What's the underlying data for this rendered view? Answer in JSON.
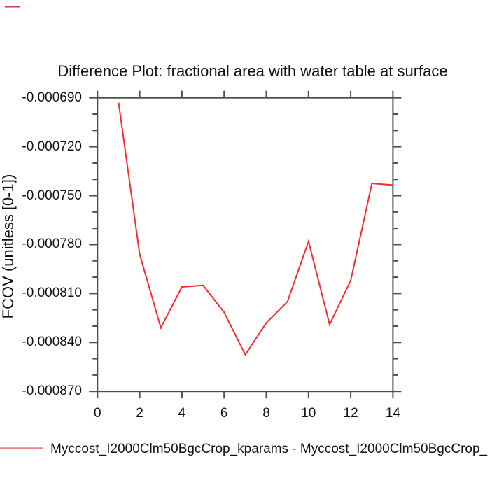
{
  "title": "Difference Plot: fractional area with water table at surface",
  "legend": {
    "label": "Myccost_I2000Clm50BgcCrop_kparams - Myccost_I2000Clm50BgcCrop_",
    "line_color": "#f08080"
  },
  "colors": {
    "line": "#f92b2b",
    "frame": "#4d4d4d",
    "text": "#111111",
    "stray_mark": "#cf4040"
  },
  "chart_data": {
    "type": "line",
    "title": "Difference Plot: fractional area with water table at surface",
    "xlabel": "",
    "ylabel": "FCOV (unitless [0-1])",
    "x": [
      1,
      2,
      3,
      4,
      5,
      6,
      7,
      8,
      9,
      10,
      11,
      12,
      13,
      14
    ],
    "values": [
      -0.000693,
      -0.000786,
      -0.000831,
      -0.000806,
      -0.000805,
      -0.0008215,
      -0.0008475,
      -0.000828,
      -0.000815,
      -0.000778,
      -0.000829,
      -0.000802,
      -0.0007425,
      -0.0007435
    ],
    "series_name": "Myccost_I2000Clm50BgcCrop_kparams - Myccost_I2000Clm50BgcCrop_",
    "xlim": [
      0,
      14
    ],
    "ylim": [
      -0.00087,
      -0.00069
    ],
    "x_ticks": [
      0,
      2,
      4,
      6,
      8,
      10,
      12,
      14
    ],
    "x_tick_labels": [
      "0",
      "2",
      "4",
      "6",
      "8",
      "10",
      "12",
      "14"
    ],
    "y_ticks": [
      -0.00069,
      -0.00072,
      -0.00075,
      -0.00078,
      -0.00081,
      -0.00084,
      -0.00087
    ],
    "y_tick_labels": [
      "-0.000690",
      "-0.000720",
      "-0.000750",
      "-0.000780",
      "-0.000810",
      "-0.000840",
      "-0.000870"
    ],
    "y_minor_tick_step": 1e-05,
    "grid": false,
    "legend_position": "bottom-left"
  }
}
